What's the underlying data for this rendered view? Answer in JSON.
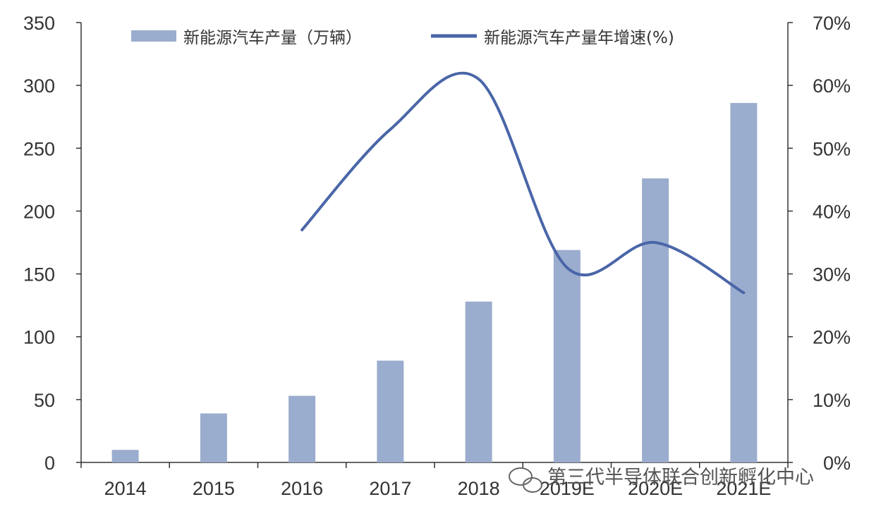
{
  "chart_data": {
    "type": "bar+line",
    "categories": [
      "2014",
      "2015",
      "2016",
      "2017",
      "2018",
      "2019E",
      "2020E",
      "2021E"
    ],
    "series": [
      {
        "name": "新能源汽车产量（万辆）",
        "type": "bar",
        "axis": "left",
        "values": [
          10,
          39,
          53,
          81,
          128,
          169,
          226,
          286
        ],
        "color": "#9badce"
      },
      {
        "name": "新能源汽车产量年增速(%)",
        "type": "line",
        "axis": "right",
        "values": [
          null,
          null,
          37,
          53,
          61,
          31,
          35,
          27
        ],
        "color": "#4a66a8"
      }
    ],
    "y_left": {
      "ylim": [
        0,
        350
      ],
      "ticks": [
        "0",
        "50",
        "100",
        "150",
        "200",
        "250",
        "300",
        "350"
      ]
    },
    "y_right": {
      "ylim": [
        0,
        70
      ],
      "ticks": [
        "0%",
        "10%",
        "20%",
        "30%",
        "40%",
        "50%",
        "60%",
        "70%"
      ]
    },
    "legend_position": "top",
    "grid": false
  },
  "watermark": {
    "text": "第三代半导体联合创新孵化中心",
    "icon": "wechat-icon"
  }
}
